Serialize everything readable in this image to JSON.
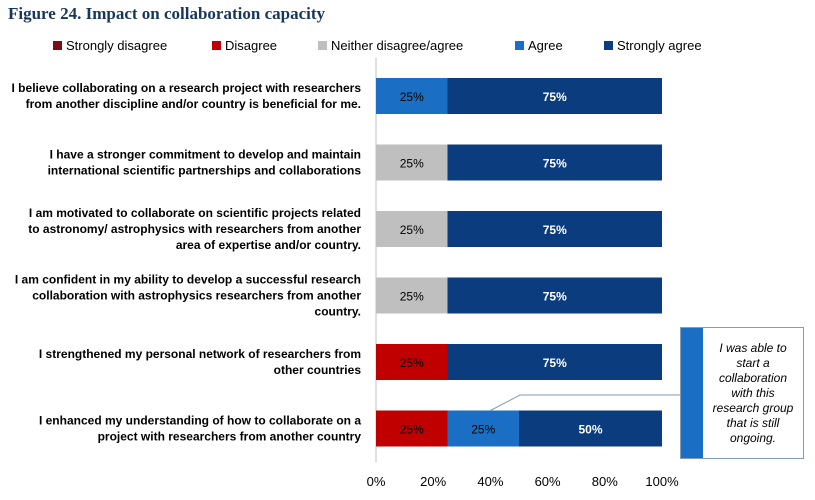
{
  "title": "Figure 24. Impact on collaboration capacity",
  "colors": {
    "strongly_disagree": "#7b0e14",
    "disagree": "#c00000",
    "neither": "#bfbfbf",
    "agree": "#1a6fc4",
    "strongly_agree": "#0b3c7d"
  },
  "callout": {
    "text": "I was able to start a collaboration with this research group that is still ongoing."
  },
  "chart_data": {
    "type": "bar",
    "orientation": "horizontal",
    "stacked": "percent",
    "legend_position": "top",
    "grid": false,
    "xlim": [
      0,
      100
    ],
    "x_ticks": [
      "0%",
      "20%",
      "40%",
      "60%",
      "80%",
      "100%"
    ],
    "categories": [
      [
        "I believe collaborating on a research project with researchers",
        "from another discipline and/or country is beneficial for me."
      ],
      [
        "I have a stronger commitment to develop and maintain",
        "international scientific partnerships and collaborations"
      ],
      [
        "I am motivated to collaborate on scientific projects related",
        "to astronomy/ astrophysics with researchers from another",
        "area of expertise and/or country."
      ],
      [
        "I am confident in my ability to develop a successful research",
        "collaboration with astrophysics researchers from another",
        "country."
      ],
      [
        "I strengthened my personal network of researchers from",
        "other countries"
      ],
      [
        "I enhanced my understanding of how to collaborate on a",
        "project with researchers from another country"
      ]
    ],
    "series": [
      {
        "name": "Strongly disagree",
        "color": "#7b0e14",
        "values": [
          0,
          0,
          0,
          0,
          0,
          0
        ]
      },
      {
        "name": "Disagree",
        "color": "#c00000",
        "values": [
          0,
          0,
          0,
          0,
          25,
          25
        ]
      },
      {
        "name": "Neither disagree/agree",
        "color": "#bfbfbf",
        "values": [
          0,
          25,
          25,
          25,
          0,
          0
        ]
      },
      {
        "name": "Agree",
        "color": "#1a6fc4",
        "values": [
          25,
          0,
          0,
          0,
          0,
          25
        ]
      },
      {
        "name": "Strongly agree",
        "color": "#0b3c7d",
        "values": [
          75,
          75,
          75,
          75,
          75,
          50
        ]
      }
    ]
  }
}
